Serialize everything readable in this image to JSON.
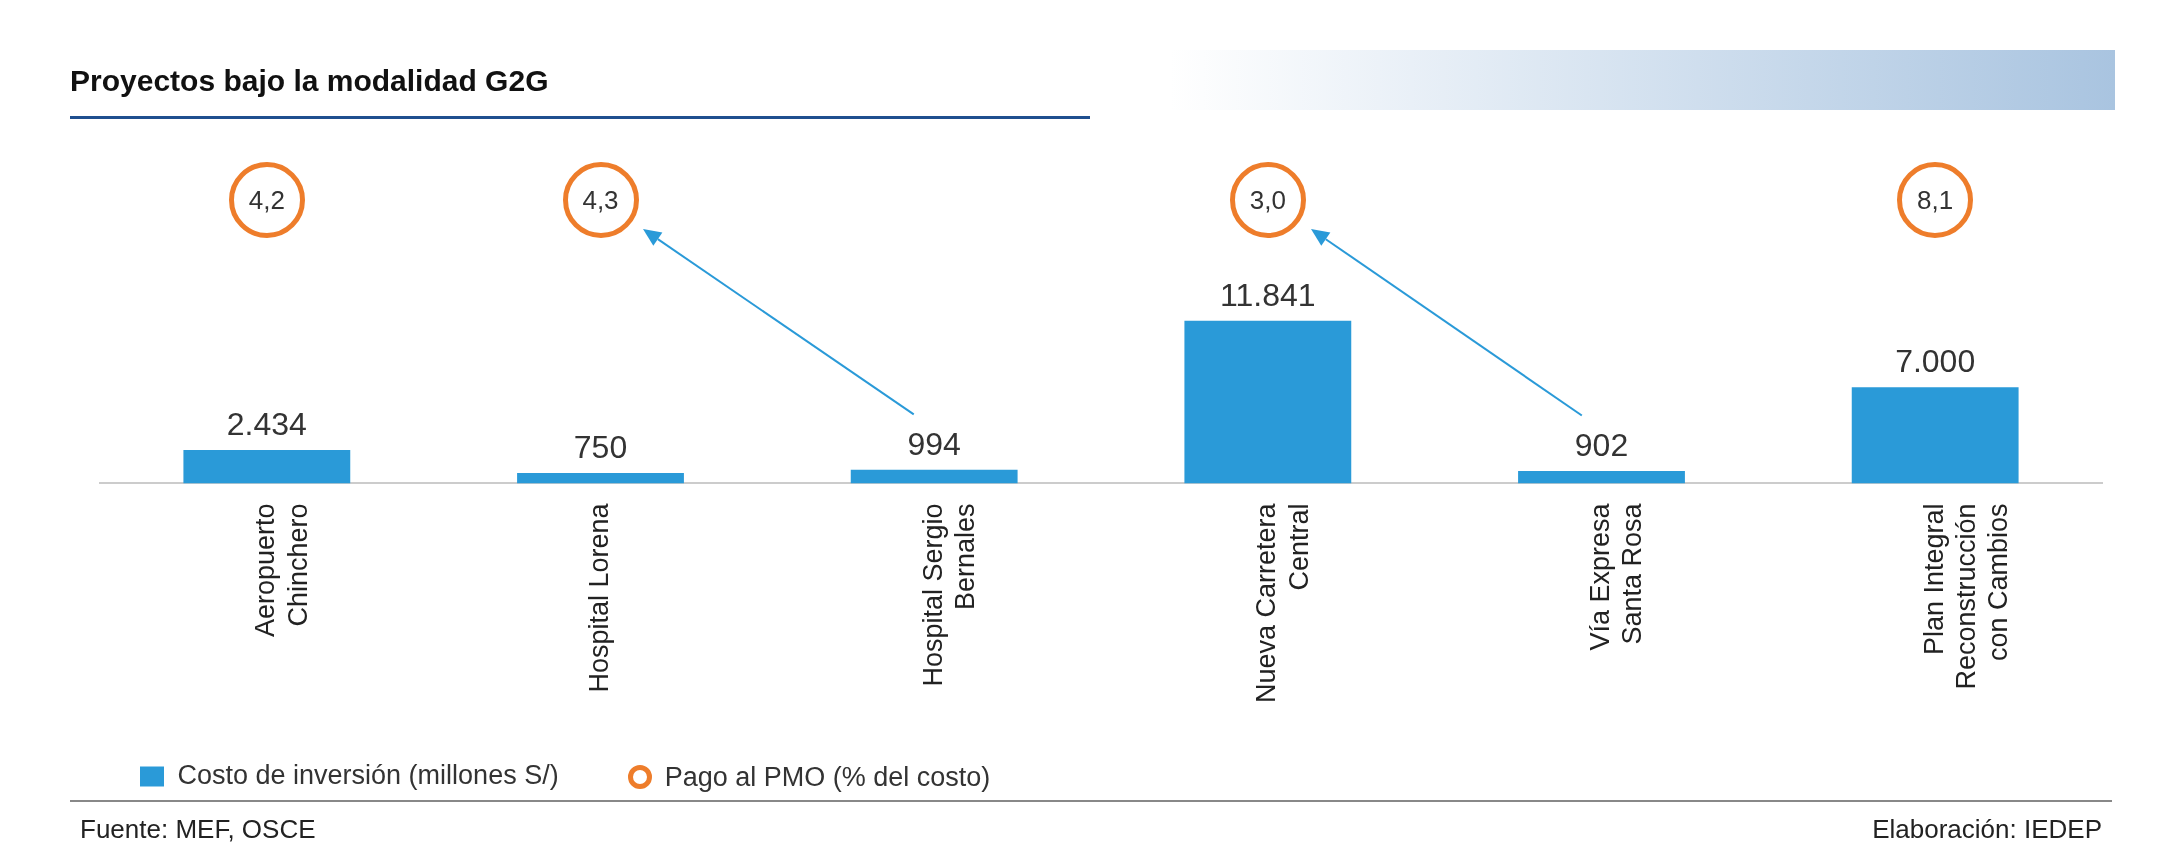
{
  "chart_data": {
    "type": "bar",
    "title": "Proyectos bajo la modalidad G2G",
    "categories": [
      "Aeropuerto Chinchero",
      "Hospital Lorena",
      "Hospital Sergio Bernales",
      "Nueva Carretera Central",
      "Vía Expresa Santa Rosa",
      "Plan Integral Reconstrucción con Cambios"
    ],
    "series": [
      {
        "name": "Costo de inversión (millones S/)",
        "color": "#2a9ad8",
        "values": [
          2434,
          750,
          994,
          11841,
          902,
          7000
        ],
        "value_labels": [
          "2.434",
          "750",
          "994",
          "11.841",
          "902",
          "7.000"
        ]
      }
    ],
    "tick_labels": "x",
    "legend": "bottom left",
    "annotations": [
      "4,2",
      "4,3",
      "3,0",
      "8,1",
      "Pago al PMO (% del costo)",
      "Fuente:  MEF, OSCE",
      "Elaboración: IEDEP"
    ]
  }
}
